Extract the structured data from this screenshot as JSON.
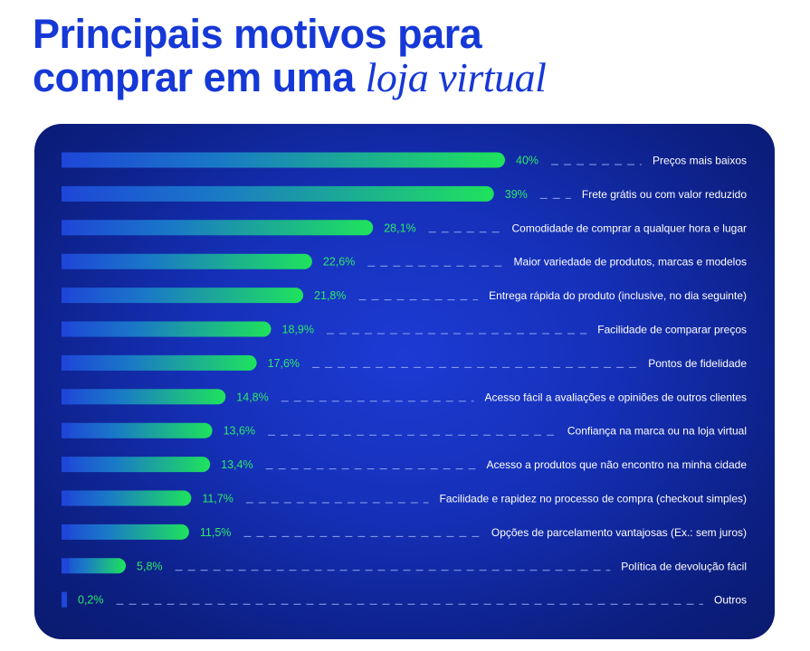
{
  "header": {
    "title_line1": "Principais motivos para",
    "title_line2_plain": "comprar em uma ",
    "title_line2_italic": "loja virtual"
  },
  "colors": {
    "title": "#1538d6",
    "panel": "#1530b8",
    "bar_start": "#1e46d8",
    "bar_end": "#1ee35c",
    "value_text": "#2de86a",
    "label_text": "#ffffff"
  },
  "chart_data": {
    "type": "bar",
    "orientation": "horizontal",
    "xlim": [
      0,
      40
    ],
    "grid": false,
    "categories": [
      "Preços mais baixos",
      "Frete grátis ou com valor reduzido",
      "Comodidade de comprar a qualquer hora e lugar",
      "Maior variedade de produtos, marcas e modelos",
      "Entrega rápida do produto (inclusive, no dia seguinte)",
      "Facilidade de comparar preços",
      "Pontos de fidelidade",
      "Acesso fácil a avaliações e opiniões de outros clientes",
      "Confiança na marca ou na loja virtual",
      "Acesso a produtos que não encontro na minha cidade",
      "Facilidade e rapidez no processo de compra (checkout simples)",
      "Opções de parcelamento vantajosas (Ex.: sem juros)",
      "Política de devolução fácil",
      "Outros"
    ],
    "values": [
      40,
      39,
      28.1,
      22.6,
      21.8,
      18.9,
      17.6,
      14.8,
      13.6,
      13.4,
      11.7,
      11.5,
      5.8,
      0.2
    ],
    "value_labels": [
      "40%",
      "39%",
      "28,1%",
      "22,6%",
      "21,8%",
      "18,9%",
      "17,6%",
      "14,8%",
      "13,6%",
      "13,4%",
      "11,7%",
      "11,5%",
      "5,8%",
      "0,2%"
    ]
  }
}
